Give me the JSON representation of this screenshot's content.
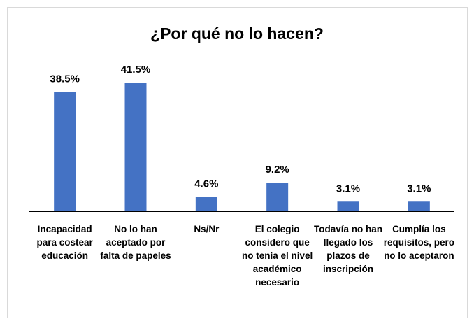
{
  "chart_data": {
    "type": "bar",
    "title": "¿Por qué no lo hacen?",
    "categories": [
      "Incapacidad para costear educación",
      "No lo han aceptado por falta de papeles",
      "Ns/Nr",
      "El colegio considero que no tenia el nivel académico necesario",
      "Todavía no han llegado los plazos de inscripción",
      "Cumplía los requisitos, pero no lo aceptaron"
    ],
    "values": [
      38.5,
      41.5,
      4.6,
      9.2,
      3.1,
      3.1
    ],
    "value_labels": [
      "38.5%",
      "41.5%",
      "4.6%",
      "9.2%",
      "3.1%",
      "3.1%"
    ],
    "color": "#4472c4"
  }
}
